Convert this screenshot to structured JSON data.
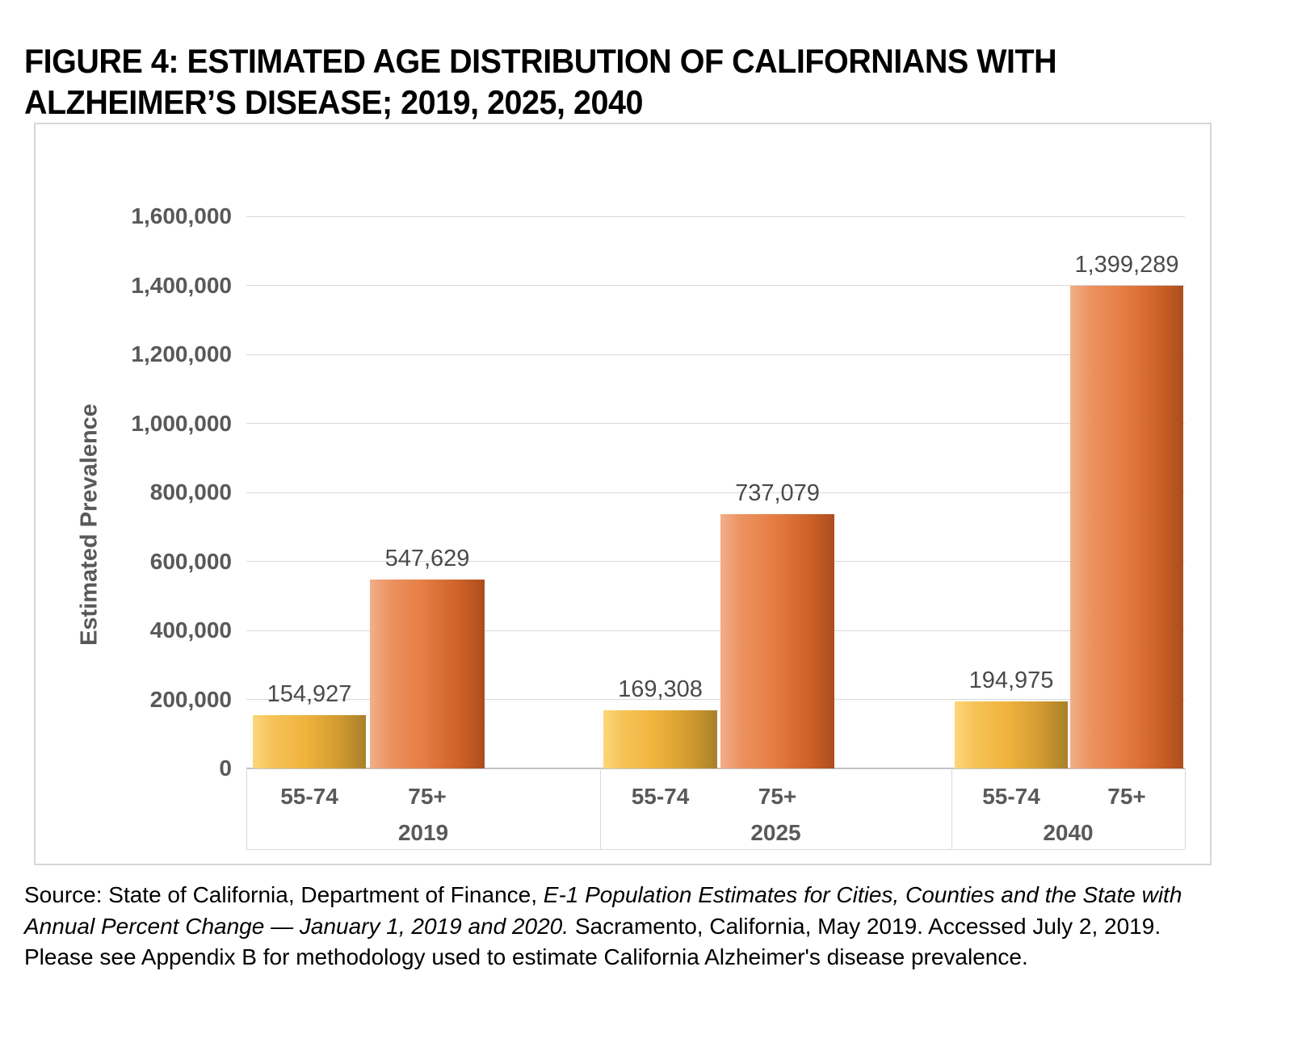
{
  "figure": {
    "title_line1": "FIGURE 4: ESTIMATED AGE DISTRIBUTION OF CALIFORNIANS WITH",
    "title_line2": "ALZHEIMER’S DISEASE; 2019, 2025, 2040"
  },
  "chart_data": {
    "type": "bar",
    "title": "FIGURE 4: ESTIMATED AGE DISTRIBUTION OF CALIFORNIANS WITH ALZHEIMER’S DISEASE; 2019, 2025, 2040",
    "xlabel": "",
    "ylabel": "Estimated Prevalence",
    "ylim": [
      0,
      1600000
    ],
    "grid": true,
    "legend_position": "none",
    "yticks": [
      {
        "value": 0,
        "label": "0"
      },
      {
        "value": 200000,
        "label": "200,000"
      },
      {
        "value": 400000,
        "label": "400,000"
      },
      {
        "value": 600000,
        "label": "600,000"
      },
      {
        "value": 800000,
        "label": "800,000"
      },
      {
        "value": 1000000,
        "label": "1,000,000"
      },
      {
        "value": 1200000,
        "label": "1,200,000"
      },
      {
        "value": 1400000,
        "label": "1,400,000"
      },
      {
        "value": 1600000,
        "label": "1,600,000"
      }
    ],
    "categories": [
      "55-74",
      "75+"
    ],
    "groups": [
      {
        "year": "2019",
        "values": [
          154927,
          547629
        ],
        "labels": [
          "154,927",
          "547,629"
        ]
      },
      {
        "year": "2025",
        "values": [
          169308,
          737079
        ],
        "labels": [
          "169,308",
          "737,079"
        ]
      },
      {
        "year": "2040",
        "values": [
          194975,
          1399289
        ],
        "labels": [
          "194,975",
          "1,399,289"
        ]
      }
    ],
    "series": [
      {
        "name": "55-74",
        "color_light": "#FCD67C",
        "color_mid": "#F0B43E",
        "color_dark": "#A8802A"
      },
      {
        "name": "75+",
        "color_light": "#F2AF89",
        "color_mid": "#E67E45",
        "color_dark": "#AC4D1D"
      }
    ],
    "colors": {
      "axis_text": "#595959",
      "data_label_text": "#4a4a4a",
      "gridline": "#d9d9d9",
      "panel_border": "#d6d6d6"
    }
  },
  "source_note": {
    "regular_1": "Source: State of California, Department of Finance, ",
    "italic": "E-1 Population Estimates for Cities, Counties and the State with Annual Percent Change — January 1, 2019 and 2020.",
    "regular_2": " Sacramento, California, May 2019. Accessed July 2, 2019. Please see Appendix B for methodology used to estimate California Alzheimer's disease prevalence."
  }
}
